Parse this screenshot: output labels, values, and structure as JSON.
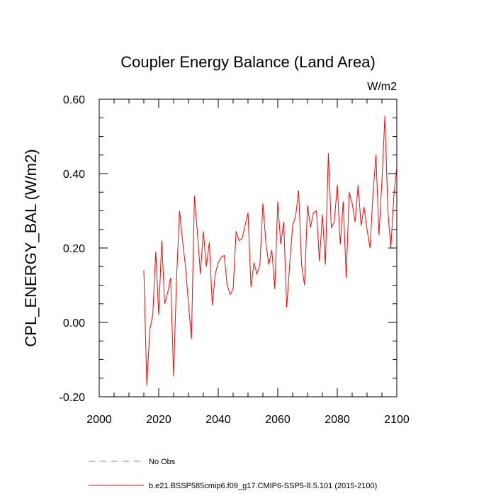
{
  "chart_data": {
    "type": "line",
    "title": "Coupler Energy Balance (Land Area)",
    "units_label": "W/m2",
    "ylabel": "CPL_ENERGY_BAL  (W/m2)",
    "xlabel": "",
    "xlim": [
      2000,
      2100
    ],
    "ylim": [
      -0.2,
      0.6
    ],
    "x_ticks": [
      2000,
      2020,
      2040,
      2060,
      2080,
      2100
    ],
    "x_tick_labels": [
      "2000",
      "2020",
      "2040",
      "2060",
      "2080",
      "2100"
    ],
    "y_ticks": [
      -0.2,
      0.0,
      0.2,
      0.4,
      0.6
    ],
    "y_tick_labels": [
      "-0.20",
      "0.00",
      "0.20",
      "0.40",
      "0.60"
    ],
    "grid": false,
    "legend_position": "bottom",
    "legend": [
      {
        "label": "No Obs",
        "color": "#8080ff",
        "style": "dashed"
      },
      {
        "label": "b.e21.BSSP585cmip6.f09_g17.CMIP6-SSP5-8.5.101 (2015-2100)",
        "color": "#ff0000",
        "style": "solid"
      }
    ],
    "series": [
      {
        "name": "b.e21.BSSP585cmip6.f09_g17.CMIP6-SSP5-8.5.101 (2015-2100)",
        "color": "#ff0000",
        "x": [
          2015,
          2016,
          2017,
          2018,
          2019,
          2020,
          2021,
          2022,
          2023,
          2024,
          2025,
          2026,
          2027,
          2028,
          2029,
          2030,
          2031,
          2032,
          2033,
          2034,
          2035,
          2036,
          2037,
          2038,
          2039,
          2040,
          2041,
          2042,
          2043,
          2044,
          2045,
          2046,
          2047,
          2048,
          2049,
          2050,
          2051,
          2052,
          2053,
          2054,
          2055,
          2056,
          2057,
          2058,
          2059,
          2060,
          2061,
          2062,
          2063,
          2064,
          2065,
          2066,
          2067,
          2068,
          2069,
          2070,
          2071,
          2072,
          2073,
          2074,
          2075,
          2076,
          2077,
          2078,
          2079,
          2080,
          2081,
          2082,
          2083,
          2084,
          2085,
          2086,
          2087,
          2088,
          2089,
          2090,
          2091,
          2092,
          2093,
          2094,
          2095,
          2096,
          2097,
          2098,
          2099,
          2100
        ],
        "values": [
          0.14,
          -0.17,
          -0.02,
          0.02,
          0.19,
          0.02,
          0.22,
          0.05,
          0.08,
          0.12,
          -0.145,
          0.12,
          0.3,
          0.22,
          0.15,
          0.05,
          -0.045,
          0.34,
          0.24,
          0.13,
          0.245,
          0.15,
          0.215,
          0.045,
          0.13,
          0.16,
          0.175,
          0.18,
          0.1,
          0.075,
          0.09,
          0.245,
          0.22,
          0.225,
          0.26,
          0.295,
          0.095,
          0.16,
          0.13,
          0.155,
          0.32,
          0.215,
          0.155,
          0.195,
          0.09,
          0.325,
          0.21,
          0.27,
          0.04,
          0.155,
          0.26,
          0.285,
          0.355,
          0.155,
          0.1,
          0.315,
          0.255,
          0.295,
          0.3,
          0.165,
          0.29,
          0.155,
          0.455,
          0.255,
          0.27,
          0.37,
          0.21,
          0.325,
          0.12,
          0.35,
          0.32,
          0.27,
          0.37,
          0.26,
          0.31,
          0.25,
          0.2,
          0.345,
          0.45,
          0.235,
          0.38,
          0.555,
          0.3,
          0.2,
          0.34,
          0.42
        ]
      }
    ]
  }
}
